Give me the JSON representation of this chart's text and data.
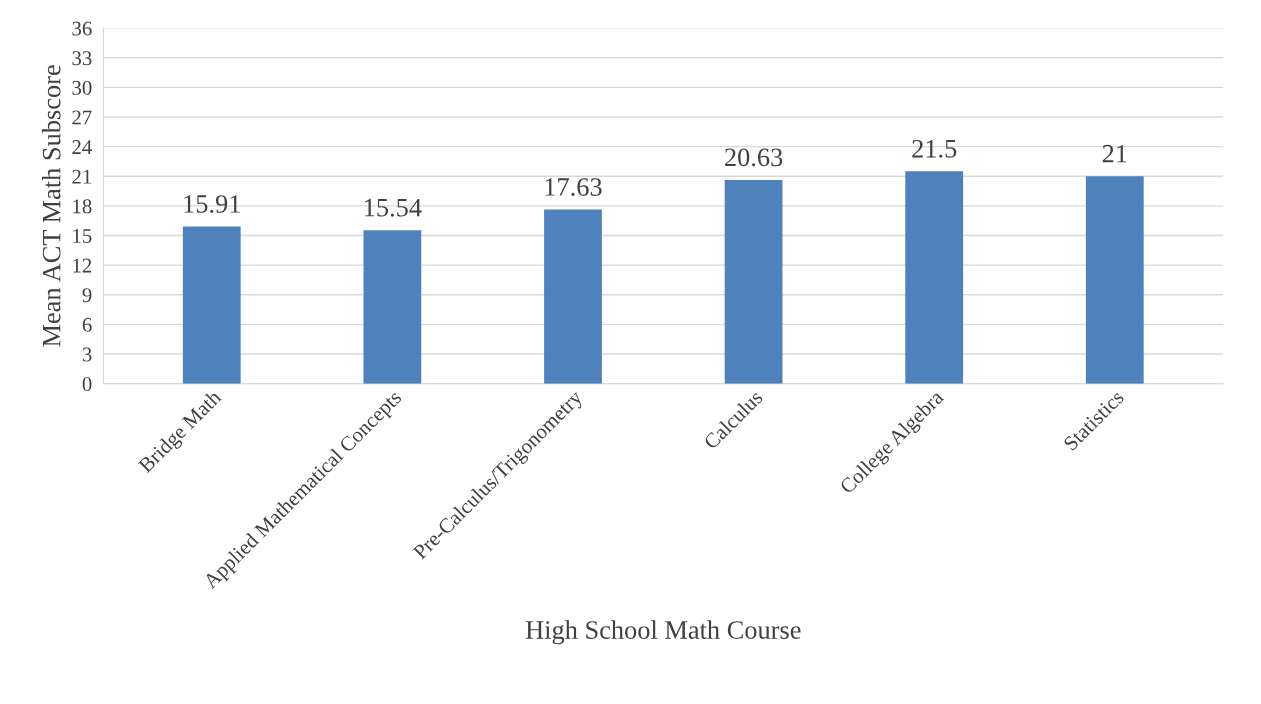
{
  "chart_data": {
    "type": "bar",
    "xlabel": "High School Math Course",
    "ylabel": "Mean ACT Math Subscore",
    "categories": [
      "Bridge Math",
      "Applied Mathematical Concepts",
      "Pre-Calculus/Trigonometry",
      "Calculus",
      "College Algebra",
      "Statistics"
    ],
    "values": [
      15.91,
      15.54,
      17.63,
      20.63,
      21.5,
      21
    ],
    "color": "#4f81bd",
    "ylim": [
      0,
      36
    ],
    "yticks": [
      0,
      3,
      6,
      9,
      12,
      15,
      18,
      21,
      24,
      27,
      30,
      33,
      36
    ],
    "grid": "y",
    "data_labels": true,
    "legend": false
  }
}
